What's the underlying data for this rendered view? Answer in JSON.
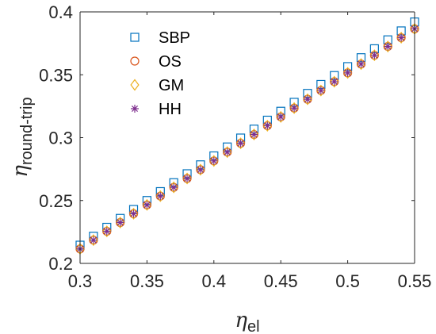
{
  "chart_data": {
    "type": "scatter",
    "title": "",
    "xlabel": {
      "symbol": "η",
      "subscript": "el"
    },
    "ylabel": {
      "symbol": "η",
      "subscript": "round-trip"
    },
    "xlim": [
      0.3,
      0.55
    ],
    "ylim": [
      0.2,
      0.4
    ],
    "xticks": [
      0.3,
      0.35,
      0.4,
      0.45,
      0.5,
      0.55
    ],
    "xtick_labels": [
      "0.3",
      "0.35",
      "0.4",
      "0.45",
      "0.5",
      "0.55"
    ],
    "yticks": [
      0.2,
      0.25,
      0.3,
      0.35,
      0.4
    ],
    "ytick_labels": [
      "0.2",
      "0.25",
      "0.3",
      "0.35",
      "0.4"
    ],
    "grid": false,
    "legend_position": "top-left",
    "x": [
      0.3,
      0.31,
      0.32,
      0.33,
      0.34,
      0.35,
      0.36,
      0.37,
      0.38,
      0.39,
      0.4,
      0.41,
      0.42,
      0.43,
      0.44,
      0.45,
      0.46,
      0.47,
      0.48,
      0.49,
      0.5,
      0.51,
      0.52,
      0.53,
      0.54,
      0.55
    ],
    "series": [
      {
        "name": "SBP",
        "marker": "square",
        "color": "#0072BD",
        "values": [
          0.2145,
          0.2216,
          0.2287,
          0.2358,
          0.2429,
          0.25,
          0.2571,
          0.2642,
          0.2713,
          0.2784,
          0.2855,
          0.2926,
          0.2997,
          0.3068,
          0.3139,
          0.321,
          0.3281,
          0.3352,
          0.3423,
          0.3494,
          0.3565,
          0.3636,
          0.3707,
          0.3778,
          0.3849,
          0.392
        ]
      },
      {
        "name": "OS",
        "marker": "circle",
        "color": "#D95319",
        "values": [
          0.2115,
          0.2185,
          0.2255,
          0.2325,
          0.2395,
          0.2465,
          0.2535,
          0.2605,
          0.2675,
          0.2745,
          0.2815,
          0.2885,
          0.2955,
          0.3025,
          0.3095,
          0.3165,
          0.3235,
          0.3305,
          0.3375,
          0.3445,
          0.3515,
          0.3585,
          0.3655,
          0.3725,
          0.3795,
          0.3865
        ]
      },
      {
        "name": "GM",
        "marker": "diamond",
        "color": "#EDB120",
        "values": [
          0.2115,
          0.2185,
          0.2255,
          0.2325,
          0.2395,
          0.2465,
          0.2535,
          0.2605,
          0.2675,
          0.2745,
          0.2815,
          0.2885,
          0.2955,
          0.3025,
          0.3095,
          0.3165,
          0.3235,
          0.3305,
          0.3375,
          0.3445,
          0.3515,
          0.3585,
          0.3655,
          0.3725,
          0.3795,
          0.3865
        ]
      },
      {
        "name": "HH",
        "marker": "asterisk",
        "color": "#7E2F8E",
        "values": [
          0.2115,
          0.2185,
          0.2255,
          0.2325,
          0.2395,
          0.2465,
          0.2535,
          0.2605,
          0.2675,
          0.2745,
          0.2815,
          0.2885,
          0.2955,
          0.3025,
          0.3095,
          0.3165,
          0.3235,
          0.3305,
          0.3375,
          0.3445,
          0.3515,
          0.3585,
          0.3655,
          0.3725,
          0.3795,
          0.3865
        ]
      }
    ]
  }
}
